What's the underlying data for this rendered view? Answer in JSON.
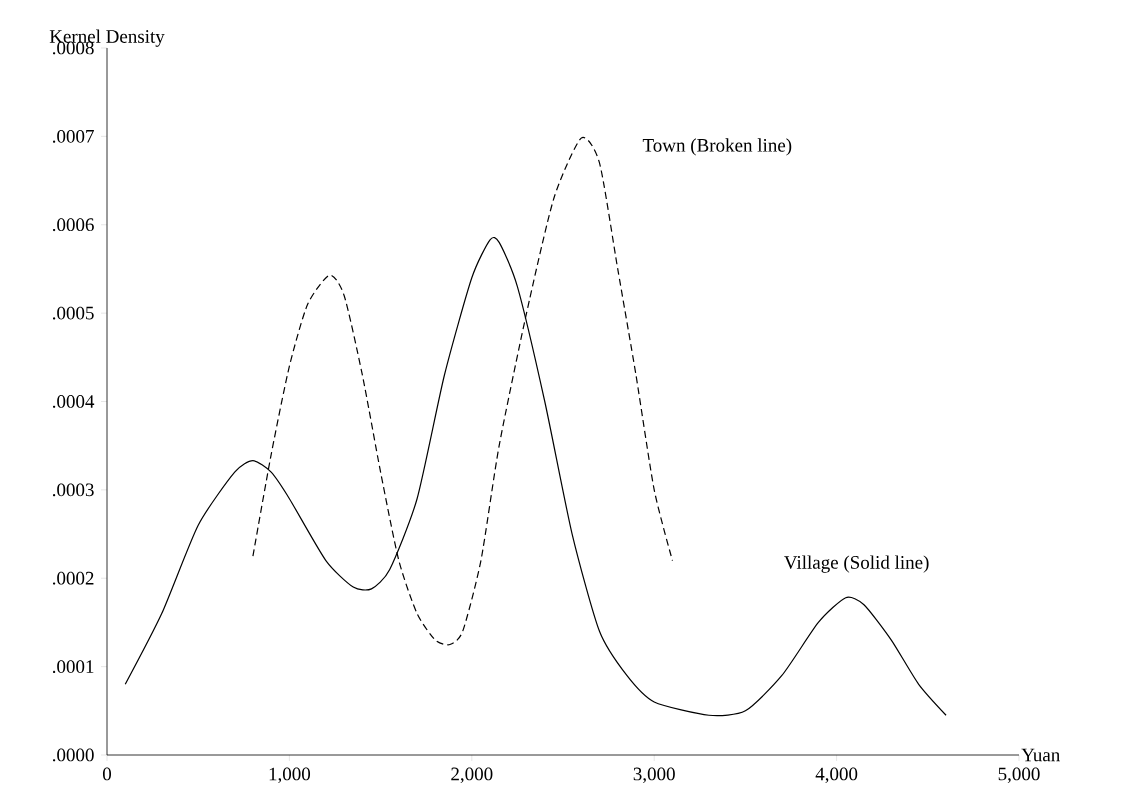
{
  "chart_data": {
    "type": "line",
    "xlabel": "Yuan",
    "ylabel": "Kernel Density",
    "xlim": [
      0,
      5000
    ],
    "ylim": [
      0,
      0.0008
    ],
    "xticks": [
      0,
      {
        "value": 1000,
        "label": "1,000"
      },
      {
        "value": 2000,
        "label": "2,000"
      },
      {
        "value": 3000,
        "label": "3,000"
      },
      {
        "value": 4000,
        "label": "4,000"
      },
      {
        "value": 5000,
        "label": "5,000"
      }
    ],
    "yticks": [
      {
        "value": 0,
        "label": ".0000"
      },
      {
        "value": 0.0001,
        "label": ".0001"
      },
      {
        "value": 0.0002,
        "label": ".0002"
      },
      {
        "value": 0.0003,
        "label": ".0003"
      },
      {
        "value": 0.0004,
        "label": ".0004"
      },
      {
        "value": 0.0005,
        "label": ".0005"
      },
      {
        "value": 0.0006,
        "label": ".0006"
      },
      {
        "value": 0.0007,
        "label": ".0007"
      },
      {
        "value": 0.0008,
        "label": ".0008"
      }
    ],
    "grid": false,
    "marker": "none",
    "series": [
      {
        "color": "#000000",
        "line_style": "solid",
        "x": [
          100,
          300,
          500,
          700,
          800,
          900,
          1000,
          1200,
          1350,
          1450,
          1550,
          1700,
          1850,
          2000,
          2100,
          2150,
          2250,
          2400,
          2550,
          2700,
          2850,
          3000,
          3300,
          3500,
          3700,
          3900,
          4050,
          4150,
          4300,
          4450,
          4600
        ],
        "values": [
          8e-05,
          0.00016,
          0.00026,
          0.00032,
          0.000333,
          0.00032,
          0.00029,
          0.00022,
          0.00019,
          0.000188,
          0.00021,
          0.00029,
          0.00043,
          0.00054,
          0.000583,
          0.00058,
          0.00053,
          0.0004,
          0.00025,
          0.00014,
          9e-05,
          6e-05,
          4.5e-05,
          5e-05,
          9e-05,
          0.00015,
          0.000178,
          0.00017,
          0.00013,
          8e-05,
          4.5e-05
        ]
      },
      {
        "color": "#000000",
        "line_style": "dashed",
        "x": [
          800,
          900,
          1000,
          1100,
          1220,
          1300,
          1400,
          1500,
          1600,
          1700,
          1800,
          1880,
          1950,
          2050,
          2150,
          2300,
          2450,
          2600,
          2700,
          2800,
          2900,
          3000,
          3100
        ],
        "values": [
          0.000225,
          0.00034,
          0.00044,
          0.00051,
          0.000543,
          0.00052,
          0.00043,
          0.00032,
          0.00022,
          0.00016,
          0.00013,
          0.000125,
          0.00014,
          0.00022,
          0.00035,
          0.0005,
          0.00063,
          0.000698,
          0.00067,
          0.00055,
          0.00043,
          0.0003,
          0.00022
        ]
      }
    ],
    "annotations": [
      "Town (Broken line)",
      "Village (Solid line)"
    ]
  }
}
